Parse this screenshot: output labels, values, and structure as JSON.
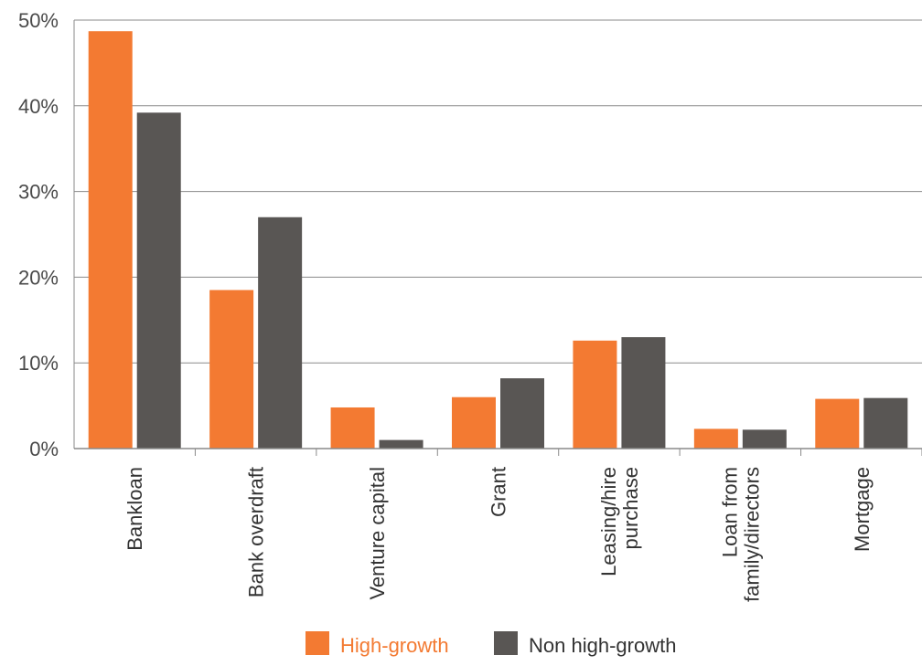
{
  "chart_data": {
    "type": "bar",
    "categories": [
      [
        "Bankloan"
      ],
      [
        "Bank overdraft"
      ],
      [
        "Venture capital"
      ],
      [
        "Grant"
      ],
      [
        "Leasing/hire",
        "purchase"
      ],
      [
        "Loan from",
        "family/directors"
      ],
      [
        "Mortgage"
      ]
    ],
    "series": [
      {
        "name": "High-growth",
        "color": "#f37a32",
        "values": [
          48.7,
          18.5,
          4.8,
          6.0,
          12.6,
          2.3,
          5.8
        ]
      },
      {
        "name": "Non high-growth",
        "color": "#595654",
        "values": [
          39.2,
          27.0,
          1.0,
          8.2,
          13.0,
          2.2,
          5.9
        ]
      }
    ],
    "y_ticks": [
      "0%",
      "10%",
      "20%",
      "30%",
      "40%",
      "50%"
    ],
    "ylim": [
      0,
      50
    ],
    "grid": true,
    "legend_position": "bottom",
    "legend_text_colors": [
      "#f37a32",
      "#333333"
    ]
  }
}
